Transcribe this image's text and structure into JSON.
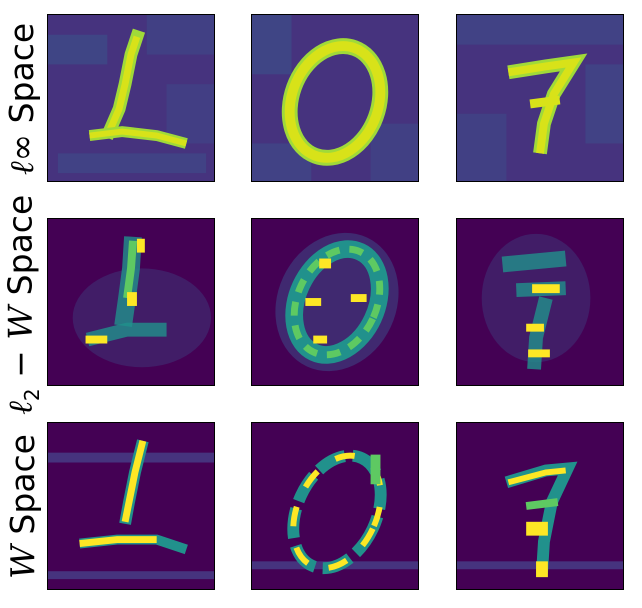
{
  "figure": {
    "rows": [
      {
        "label_main": "ℓ∞ Space",
        "label_parts": {
          "prefix": "ℓ∞",
          "suffix": " Space"
        }
      },
      {
        "label_main": "ℓ2 − W Space",
        "label_parts": {
          "prefix": "ℓ",
          "sub": "2",
          "mid": " − ",
          "var": "W",
          "suffix": " Space"
        }
      },
      {
        "label_main": "W Space",
        "label_parts": {
          "var": "W",
          "suffix": " Space"
        }
      }
    ],
    "digits": [
      "1",
      "0",
      "7"
    ],
    "colormap": "viridis",
    "colors": {
      "background": "#440154",
      "bg_noise": "#3b528b",
      "mid": "#21918c",
      "high": "#5ec962",
      "peak": "#fde725"
    }
  }
}
